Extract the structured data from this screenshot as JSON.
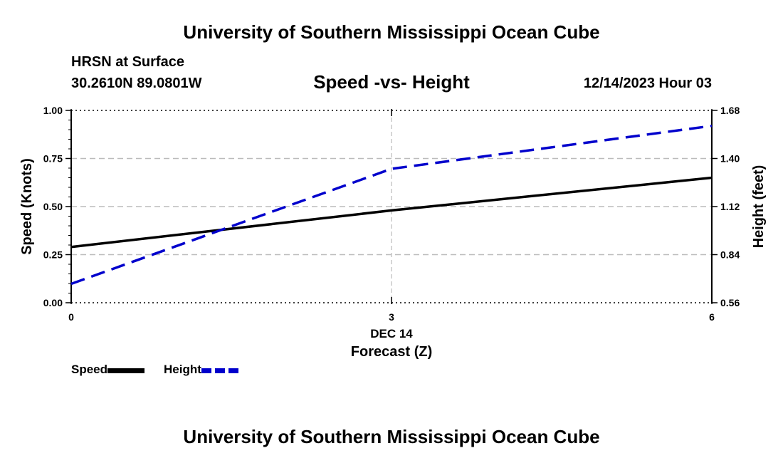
{
  "header": {
    "title": "University of Southern Mississippi Ocean Cube",
    "station": "HRSN at Surface",
    "coords": "30.2610N  89.0801W",
    "subtitle": "Speed -vs- Height",
    "datetime": "12/14/2023 Hour 03"
  },
  "footer": {
    "title": "University of Southern Mississippi Ocean Cube"
  },
  "legend": {
    "speed": "Speed",
    "height": "Height"
  },
  "colors": {
    "speed": "#000000",
    "height": "#0000cc",
    "grid": "#bbbbbb"
  },
  "chart_data": {
    "type": "line",
    "title": "Speed -vs- Height",
    "xlabel": "Forecast (Z)",
    "xdate_label": "DEC 14",
    "x": [
      0,
      3,
      6
    ],
    "xlim": [
      0,
      6
    ],
    "xticks": [
      0,
      3,
      6
    ],
    "xtick_labels": [
      "0",
      "3",
      "6"
    ],
    "y_left": {
      "label": "Speed (Knots)",
      "lim": [
        0,
        1
      ],
      "ticks": [
        0,
        0.25,
        0.5,
        0.75,
        1.0
      ],
      "tick_labels": [
        "0.00",
        "0.25",
        "0.50",
        "0.75",
        "1.00"
      ]
    },
    "y_right": {
      "label": "Height (feet)",
      "lim": [
        0.56,
        1.68
      ],
      "ticks": [
        0.56,
        0.84,
        1.12,
        1.4,
        1.68
      ],
      "tick_labels": [
        "0.56",
        "0.84",
        "1.12",
        "1.40",
        "1.68"
      ]
    },
    "series": [
      {
        "name": "Speed",
        "axis": "left",
        "style": "solid",
        "values": [
          0.29,
          0.48,
          0.65
        ]
      },
      {
        "name": "Height",
        "axis": "right",
        "style": "dashed",
        "values": [
          0.67,
          1.34,
          1.59
        ]
      }
    ],
    "grid": true
  }
}
